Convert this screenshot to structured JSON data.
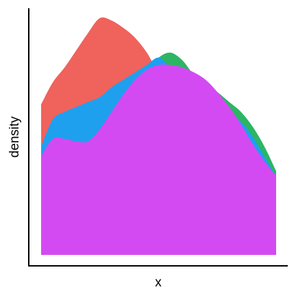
{
  "chart_data": {
    "type": "area",
    "xlabel": "x",
    "ylabel": "density",
    "xlim": [
      0,
      1
    ],
    "ylim": [
      0,
      1
    ],
    "grid": false,
    "legend": "none",
    "x": [
      0,
      0.05,
      0.1,
      0.15,
      0.2,
      0.25,
      0.3,
      0.35,
      0.4,
      0.45,
      0.5,
      0.55,
      0.6,
      0.65,
      0.7,
      0.75,
      0.8,
      0.85,
      0.9,
      0.95,
      1
    ],
    "series": [
      {
        "color": "#F0625C",
        "values": [
          0.61,
          0.7,
          0.76,
          0.83,
          0.9,
          0.96,
          0.95,
          0.92,
          0.88,
          0.82,
          0.74,
          0.72,
          0.7,
          0.67,
          0.62,
          0.58,
          0.54,
          0.48,
          0.42,
          0.35,
          0.27
        ]
      },
      {
        "color": "#2DB564",
        "values": [
          0.4,
          0.47,
          0.51,
          0.53,
          0.56,
          0.59,
          0.63,
          0.68,
          0.71,
          0.75,
          0.8,
          0.82,
          0.79,
          0.73,
          0.69,
          0.66,
          0.62,
          0.58,
          0.52,
          0.44,
          0.34
        ]
      },
      {
        "color": "#1EA0EF",
        "values": [
          0.44,
          0.55,
          0.58,
          0.6,
          0.62,
          0.64,
          0.68,
          0.71,
          0.74,
          0.77,
          0.8,
          0.76,
          0.71,
          0.68,
          0.65,
          0.62,
          0.58,
          0.54,
          0.48,
          0.4,
          0.32
        ]
      },
      {
        "color": "#D44AF2",
        "values": [
          0.4,
          0.47,
          0.47,
          0.46,
          0.46,
          0.51,
          0.58,
          0.65,
          0.71,
          0.75,
          0.77,
          0.77,
          0.76,
          0.74,
          0.71,
          0.66,
          0.6,
          0.53,
          0.45,
          0.38,
          0.32
        ]
      }
    ]
  }
}
